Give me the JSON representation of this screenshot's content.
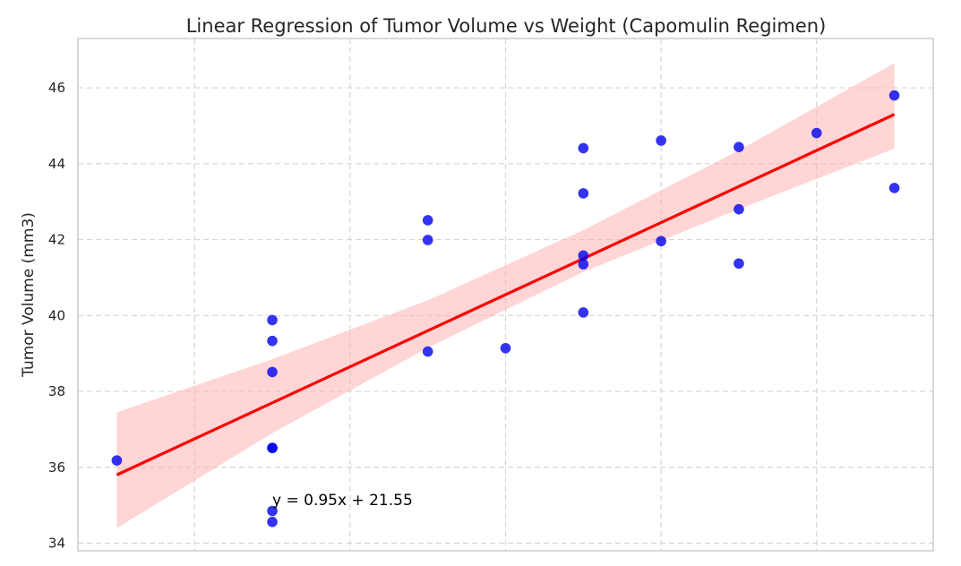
{
  "chart_data": {
    "type": "scatter",
    "title": "Linear Regression of Tumor Volume vs Weight (Capomulin Regimen)",
    "xlabel": "",
    "ylabel": "Tumor Volume (mm3)",
    "xlim": [
      14.5,
      25.5
    ],
    "ylim": [
      33.8,
      47.3
    ],
    "x_gridlines": [
      16,
      18,
      20,
      22,
      24
    ],
    "y_ticks": [
      34,
      36,
      38,
      40,
      42,
      44,
      46
    ],
    "grid": true,
    "points": [
      {
        "x": 15,
        "y": 36.18
      },
      {
        "x": 17,
        "y": 39.88
      },
      {
        "x": 17,
        "y": 39.33
      },
      {
        "x": 17,
        "y": 38.51
      },
      {
        "x": 17,
        "y": 36.51
      },
      {
        "x": 17,
        "y": 36.51
      },
      {
        "x": 17,
        "y": 34.85
      },
      {
        "x": 17,
        "y": 34.56
      },
      {
        "x": 19,
        "y": 42.51
      },
      {
        "x": 19,
        "y": 41.99
      },
      {
        "x": 19,
        "y": 39.05
      },
      {
        "x": 20,
        "y": 39.14
      },
      {
        "x": 21,
        "y": 44.41
      },
      {
        "x": 21,
        "y": 43.22
      },
      {
        "x": 21,
        "y": 41.58
      },
      {
        "x": 21,
        "y": 41.35
      },
      {
        "x": 21,
        "y": 40.08
      },
      {
        "x": 22,
        "y": 44.61
      },
      {
        "x": 22,
        "y": 41.96
      },
      {
        "x": 23,
        "y": 44.44
      },
      {
        "x": 23,
        "y": 42.8
      },
      {
        "x": 23,
        "y": 41.37
      },
      {
        "x": 24,
        "y": 44.81
      },
      {
        "x": 25,
        "y": 45.8
      },
      {
        "x": 25,
        "y": 43.36
      }
    ],
    "regression": {
      "slope": 0.95,
      "intercept": 21.55,
      "equation_label": "y = 0.95x + 21.55",
      "equation_anchor": {
        "x": 17,
        "y": 35.0
      },
      "line_color": "#ff0000",
      "ci_color": "#ffb3b3",
      "ci": [
        {
          "x": 15,
          "lo": 34.4,
          "hi": 37.45
        },
        {
          "x": 17,
          "lo": 36.9,
          "hi": 38.85
        },
        {
          "x": 19,
          "lo": 39.15,
          "hi": 40.4
        },
        {
          "x": 21,
          "lo": 41.15,
          "hi": 42.25
        },
        {
          "x": 23,
          "lo": 42.8,
          "hi": 44.35
        },
        {
          "x": 25,
          "lo": 44.4,
          "hi": 46.65
        }
      ]
    },
    "point_color": "#0000ee"
  }
}
